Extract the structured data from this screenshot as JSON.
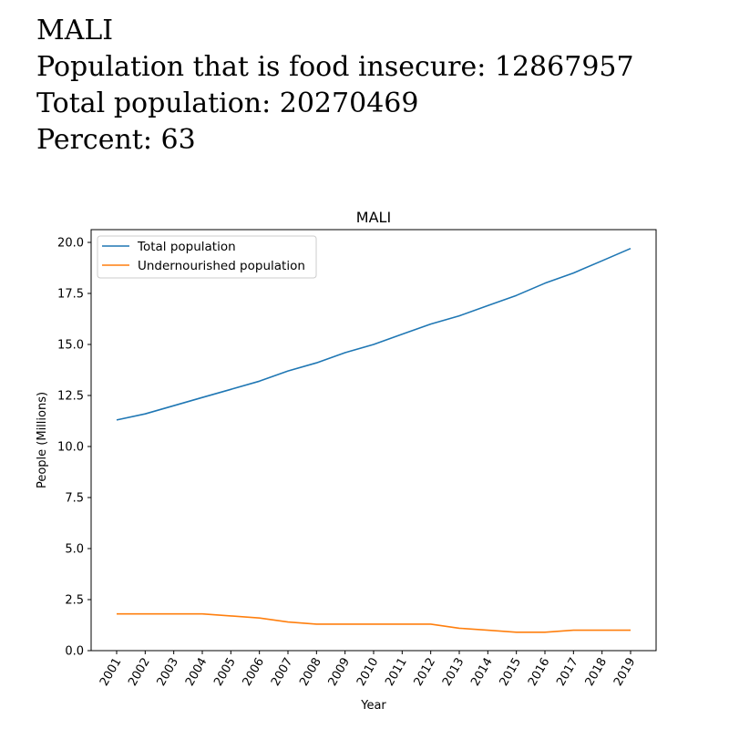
{
  "header": {
    "country": "MALI",
    "food_insecure_line": "Population that is food insecure: 12867957",
    "total_population_line": "Total population: 20270469",
    "percent_line": "Percent: 63"
  },
  "chart_data": {
    "type": "line",
    "title": "MALI",
    "xlabel": "Year",
    "ylabel": "People (Millions)",
    "x": [
      "2001",
      "2002",
      "2003",
      "2004",
      "2005",
      "2006",
      "2007",
      "2008",
      "2009",
      "2010",
      "2011",
      "2012",
      "2013",
      "2014",
      "2015",
      "2016",
      "2017",
      "2018",
      "2019"
    ],
    "ylim": [
      0,
      20.5
    ],
    "yticks": [
      "0.0",
      "2.5",
      "5.0",
      "7.5",
      "10.0",
      "12.5",
      "15.0",
      "17.5",
      "20.0"
    ],
    "legend_position": "top-left",
    "series": [
      {
        "name": "Total population",
        "color": "#1f77b4",
        "values": [
          11.3,
          11.6,
          12.0,
          12.4,
          12.8,
          13.2,
          13.7,
          14.1,
          14.6,
          15.0,
          15.5,
          16.0,
          16.4,
          16.9,
          17.4,
          18.0,
          18.5,
          19.1,
          19.7
        ]
      },
      {
        "name": "Undernourished population",
        "color": "#ff7f0e",
        "values": [
          1.8,
          1.8,
          1.8,
          1.8,
          1.7,
          1.6,
          1.4,
          1.3,
          1.3,
          1.3,
          1.3,
          1.3,
          1.1,
          1.0,
          0.9,
          0.9,
          1.0,
          1.0,
          1.0
        ]
      }
    ]
  }
}
